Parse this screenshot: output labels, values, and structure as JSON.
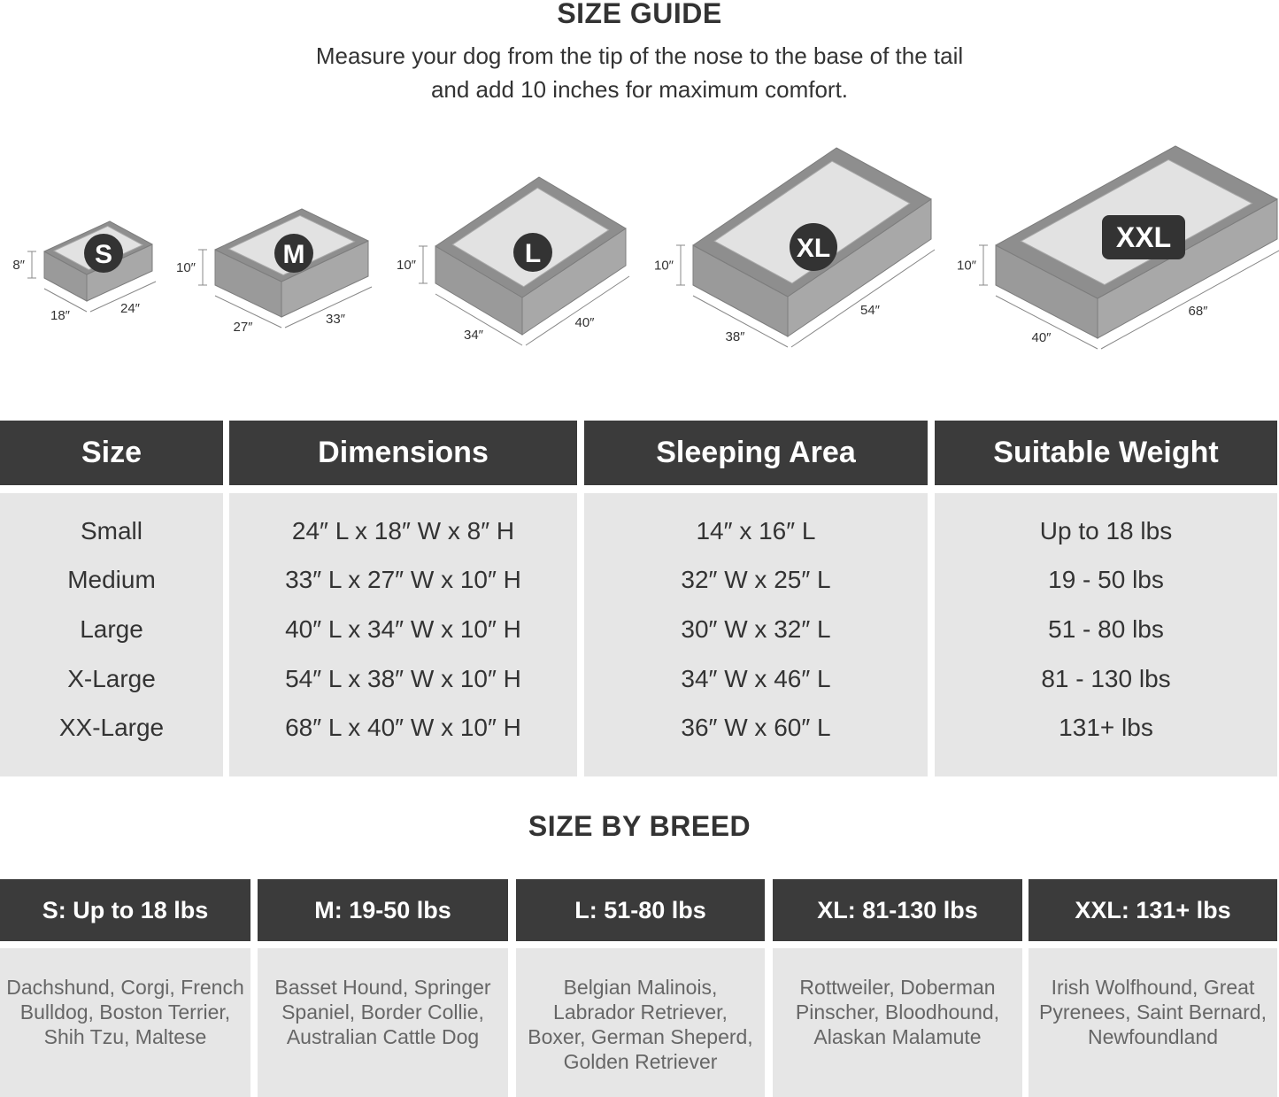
{
  "header": {
    "title": "SIZE GUIDE",
    "subtitle_line1": "Measure your dog from the tip of the nose to the base of the tail",
    "subtitle_line2": "and add 10 inches for maximum comfort."
  },
  "beds": [
    {
      "badge": "S",
      "height": "8″",
      "width": "18″",
      "length": "24″"
    },
    {
      "badge": "M",
      "height": "10″",
      "width": "27″",
      "length": "33″"
    },
    {
      "badge": "L",
      "height": "10″",
      "width": "34″",
      "length": "40″"
    },
    {
      "badge": "XL",
      "height": "10″",
      "width": "38″",
      "length": "54″"
    },
    {
      "badge": "XXL",
      "height": "10″",
      "width": "40″",
      "length": "68″"
    }
  ],
  "size_table": {
    "headers": [
      "Size",
      "Dimensions",
      "Sleeping Area",
      "Suitable Weight"
    ],
    "columns": [
      [
        "Small",
        "Medium",
        "Large",
        "X-Large",
        "XX-Large"
      ],
      [
        "24″ L x 18″ W x 8″ H",
        "33″ L x 27″ W x 10″ H",
        "40″ L x 34″ W x 10″ H",
        "54″ L x 38″ W x 10″ H",
        "68″ L x 40″ W x 10″ H"
      ],
      [
        "14″ x 16″ L",
        "32″ W x 25″ L",
        "30″ W x 32″ L",
        "34″ W x 46″ L",
        "36″ W x 60″ L"
      ],
      [
        "Up to 18 lbs",
        "19 - 50 lbs",
        "51 - 80 lbs",
        "81 - 130 lbs",
        "131+ lbs"
      ]
    ]
  },
  "breed_section": {
    "title": "SIZE BY BREED",
    "columns": [
      {
        "header": "S: Up to 18 lbs",
        "lines": [
          "Dachshund, Corgi, French",
          "Bulldog, Boston Terrier,",
          "Shih Tzu, Maltese"
        ]
      },
      {
        "header": "M: 19-50 lbs",
        "lines": [
          "Basset Hound, Springer",
          "Spaniel, Border Collie,",
          "Australian Cattle Dog"
        ]
      },
      {
        "header": "L: 51-80 lbs",
        "lines": [
          "Belgian Malinois,",
          "Labrador Retriever,",
          "Boxer, German Sheperd,",
          "Golden Retriever"
        ]
      },
      {
        "header": "XL: 81-130 lbs",
        "lines": [
          "Rottweiler, Doberman",
          "Pinscher, Bloodhound,",
          "Alaskan Malamute"
        ]
      },
      {
        "header": "XXL: 131+ lbs",
        "lines": [
          "Irish Wolfhound, Great",
          "Pyrenees, Saint Bernard,",
          "Newfoundland"
        ]
      }
    ]
  },
  "colors": {
    "header_bg": "#3b3b3b",
    "body_bg": "#e6e6e6",
    "bed_frame": "#8e8e8e",
    "bed_inner": "#e2e2e2"
  }
}
